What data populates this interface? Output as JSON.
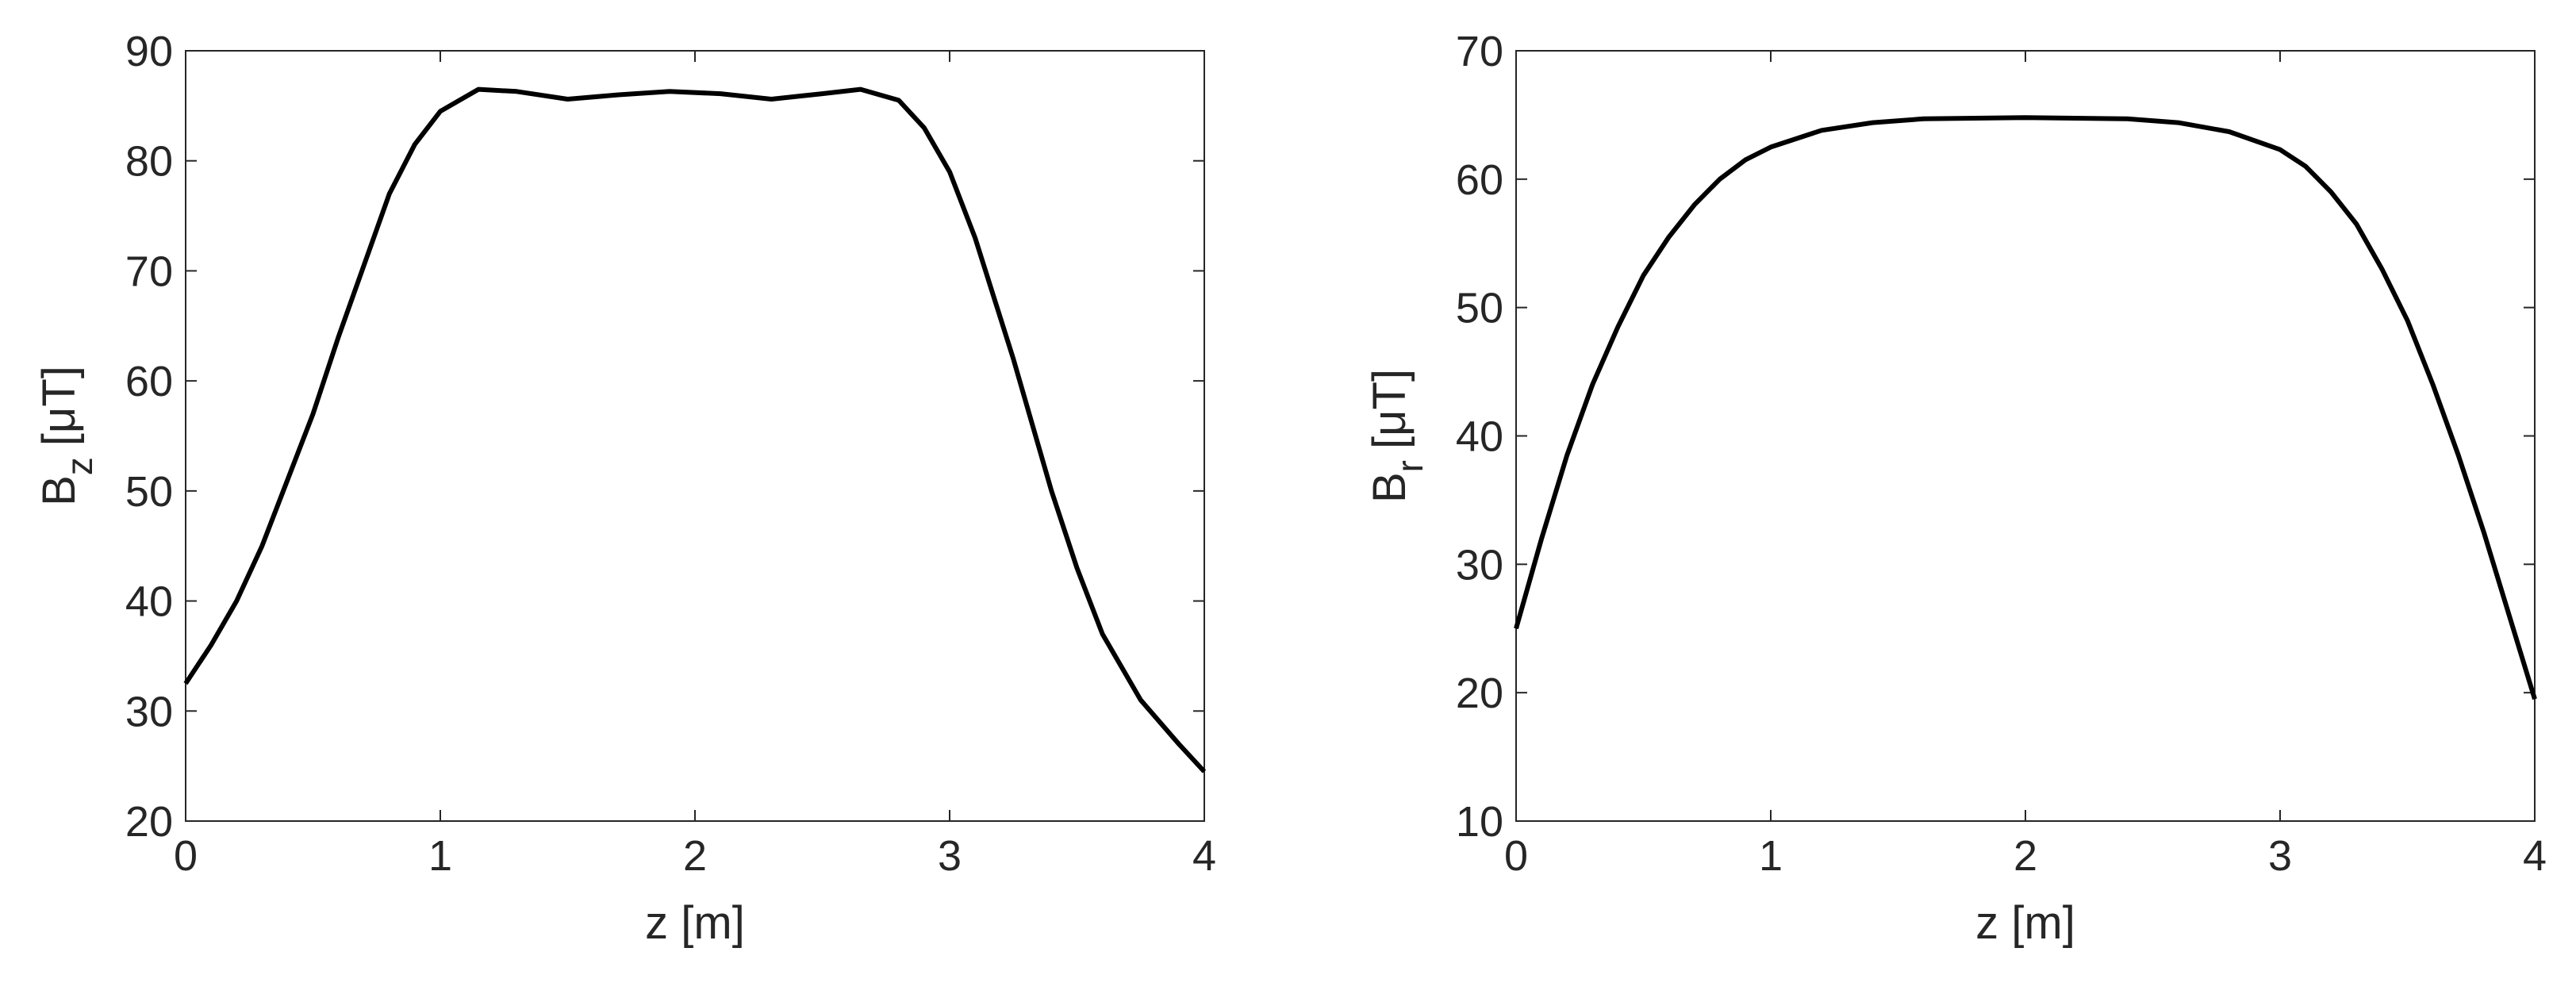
{
  "chart_data": [
    {
      "type": "line",
      "xlabel": "z [m]",
      "ylabel": "B",
      "ylabel_sub": "z",
      "ylabel_unit": "[μT]",
      "x": [
        0,
        0.1,
        0.2,
        0.3,
        0.4,
        0.5,
        0.6,
        0.7,
        0.8,
        0.9,
        1.0,
        1.15,
        1.3,
        1.5,
        1.7,
        1.9,
        2.1,
        2.3,
        2.5,
        2.65,
        2.8,
        2.9,
        3.0,
        3.1,
        3.25,
        3.4,
        3.5,
        3.6,
        3.75,
        3.9,
        4.0
      ],
      "series": [
        {
          "color": "#000000",
          "values": [
            32.5,
            36,
            40,
            45,
            51,
            57,
            64,
            70.5,
            77,
            81.5,
            84.5,
            86.5,
            86.3,
            85.6,
            86.0,
            86.3,
            86.1,
            85.6,
            86.1,
            86.5,
            85.5,
            83,
            79,
            73,
            62,
            50,
            43,
            37,
            31,
            27,
            24.5
          ]
        }
      ],
      "xlim": [
        0,
        4
      ],
      "xticks": [
        0,
        1,
        2,
        3,
        4
      ],
      "ylim": [
        20,
        90
      ],
      "yticks": [
        20,
        30,
        40,
        50,
        60,
        70,
        80,
        90
      ]
    },
    {
      "type": "line",
      "xlabel": "z [m]",
      "ylabel": "B",
      "ylabel_sub": "r",
      "ylabel_unit": "[μT]",
      "x": [
        0,
        0.1,
        0.2,
        0.3,
        0.4,
        0.5,
        0.6,
        0.7,
        0.8,
        0.9,
        1.0,
        1.2,
        1.4,
        1.6,
        2.0,
        2.4,
        2.6,
        2.8,
        3.0,
        3.1,
        3.2,
        3.3,
        3.4,
        3.5,
        3.6,
        3.7,
        3.8,
        3.9,
        4.0
      ],
      "series": [
        {
          "color": "#000000",
          "values": [
            25,
            32,
            38.5,
            44,
            48.5,
            52.5,
            55.5,
            58,
            60,
            61.5,
            62.5,
            63.8,
            64.4,
            64.7,
            64.8,
            64.7,
            64.4,
            63.7,
            62.3,
            61,
            59,
            56.5,
            53,
            49,
            44,
            38.5,
            32.5,
            26,
            19.5
          ]
        }
      ],
      "xlim": [
        0,
        4
      ],
      "xticks": [
        0,
        1,
        2,
        3,
        4
      ],
      "ylim": [
        10,
        70
      ],
      "yticks": [
        10,
        20,
        30,
        40,
        50,
        60,
        70
      ]
    }
  ]
}
